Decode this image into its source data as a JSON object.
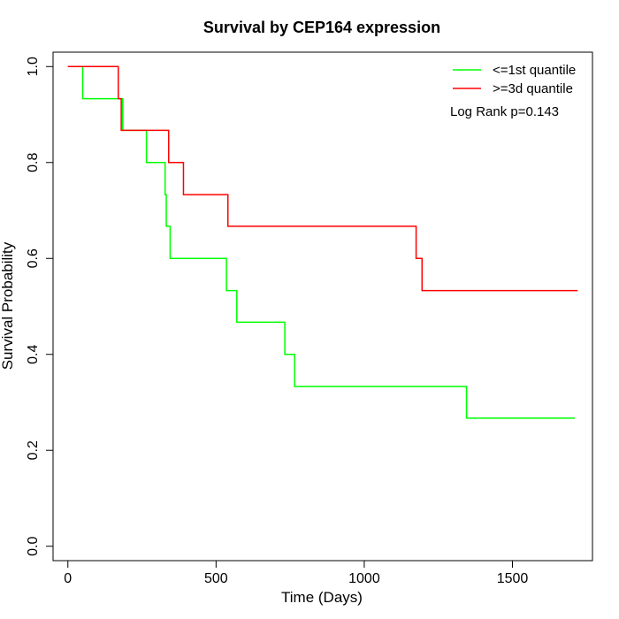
{
  "chart_data": {
    "type": "line",
    "title": "Survival by CEP164 expression",
    "xlabel": "Time (Days)",
    "ylabel": "Survival Probability",
    "xlim": [
      -50,
      1770
    ],
    "ylim": [
      -0.03,
      1.03
    ],
    "xticks": [
      0,
      500,
      1000,
      1500
    ],
    "yticks": [
      0.0,
      0.2,
      0.4,
      0.6,
      0.8,
      1.0
    ],
    "xtick_labels": [
      "0",
      "500",
      "1000",
      "1500"
    ],
    "ytick_labels": [
      "0.0",
      "0.2",
      "0.4",
      "0.6",
      "0.8",
      "1.0"
    ],
    "grid": false,
    "legend_position": "top-right",
    "annotation": "Log Rank p=0.143",
    "series": [
      {
        "name": "<=1st quantile",
        "color": "#00ff00",
        "step": true,
        "x": [
          0,
          50,
          185,
          265,
          328,
          332,
          345,
          535,
          570,
          732,
          765,
          1345,
          1710
        ],
        "y": [
          1.0,
          0.933,
          0.867,
          0.8,
          0.733,
          0.667,
          0.6,
          0.533,
          0.467,
          0.4,
          0.333,
          0.267,
          0.267
        ]
      },
      {
        "name": ">=3d quantile",
        "color": "#ff0000",
        "step": true,
        "x": [
          0,
          170,
          180,
          340,
          390,
          540,
          1175,
          1195,
          1720
        ],
        "y": [
          1.0,
          0.933,
          0.867,
          0.8,
          0.733,
          0.667,
          0.6,
          0.533,
          0.533
        ]
      }
    ]
  }
}
